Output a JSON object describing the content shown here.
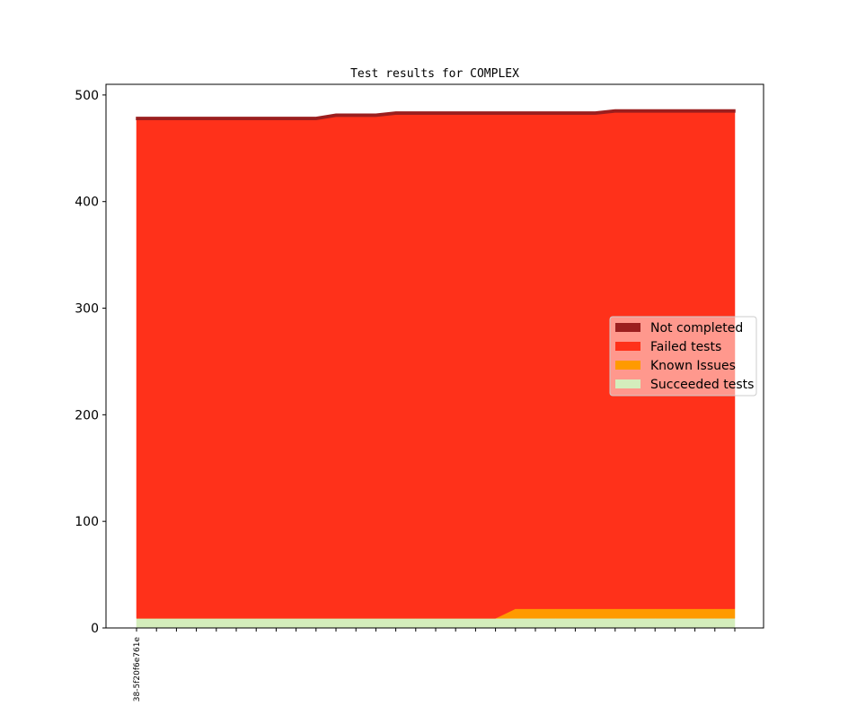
{
  "chart_data": {
    "type": "stacked_area",
    "title": "Test results for COMPLEX",
    "categories": [
      "38-5f20f6e761e",
      null,
      null,
      null,
      null,
      null,
      null,
      null,
      null,
      null,
      null,
      null,
      null,
      null,
      null,
      null,
      null,
      null,
      null,
      null,
      null,
      null,
      null,
      null,
      null,
      null,
      null,
      null,
      null,
      null,
      null
    ],
    "ylim": [
      0,
      510
    ],
    "yticks": [
      0,
      100,
      200,
      300,
      400,
      500
    ],
    "legend": "center right",
    "series": [
      {
        "name": "Succeeded tests",
        "color": "#d4edbc",
        "values": [
          9,
          9,
          9,
          9,
          9,
          9,
          9,
          9,
          9,
          9,
          9,
          9,
          9,
          9,
          9,
          9,
          9,
          9,
          9,
          9,
          9,
          9,
          9,
          9,
          9,
          9,
          9,
          9,
          9,
          9,
          9
        ]
      },
      {
        "name": "Known Issues",
        "color": "#ff9a00",
        "values": [
          0,
          0,
          0,
          0,
          0,
          0,
          0,
          0,
          0,
          0,
          0,
          0,
          0,
          0,
          0,
          0,
          0,
          0,
          0,
          9,
          9,
          9,
          9,
          9,
          9,
          9,
          9,
          9,
          9,
          9,
          9
        ]
      },
      {
        "name": "Failed tests",
        "color": "#ff311a",
        "values": [
          468,
          468,
          468,
          468,
          468,
          468,
          468,
          468,
          468,
          468,
          471,
          471,
          471,
          473,
          473,
          473,
          473,
          473,
          473,
          464,
          464,
          464,
          464,
          464,
          466,
          466,
          466,
          466,
          466,
          466,
          466
        ]
      },
      {
        "name": "Not completed",
        "color": "#9b1f1f",
        "values": [
          2,
          2,
          2,
          2,
          2,
          2,
          2,
          2,
          2,
          2,
          2,
          2,
          2,
          2,
          2,
          2,
          2,
          2,
          2,
          2,
          2,
          2,
          2,
          2,
          2,
          2,
          2,
          2,
          2,
          2,
          2
        ]
      }
    ]
  }
}
